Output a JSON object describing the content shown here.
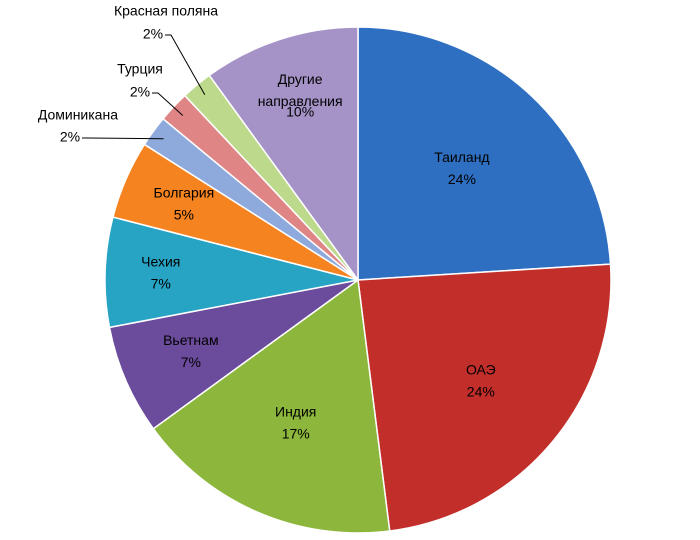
{
  "chart_data": {
    "type": "pie",
    "categories": [
      "Таиланд",
      "ОАЭ",
      "Индия",
      "Вьетнам",
      "Чехия",
      "Болгария",
      "Доминикана",
      "Турция",
      "Красная поляна",
      "Другие направления"
    ],
    "values": [
      24,
      24,
      17,
      7,
      7,
      5,
      2,
      2,
      2,
      10
    ],
    "value_labels": [
      "24%",
      "24%",
      "17%",
      "7%",
      "7%",
      "5%",
      "2%",
      "2%",
      "2%",
      "10%"
    ],
    "colors": [
      "#2f6fc1",
      "#c22e2a",
      "#8cb63c",
      "#6b4b9b",
      "#27a3c4",
      "#f5831f",
      "#8ea9dc",
      "#e08585",
      "#bdd98b",
      "#a593c8"
    ]
  }
}
